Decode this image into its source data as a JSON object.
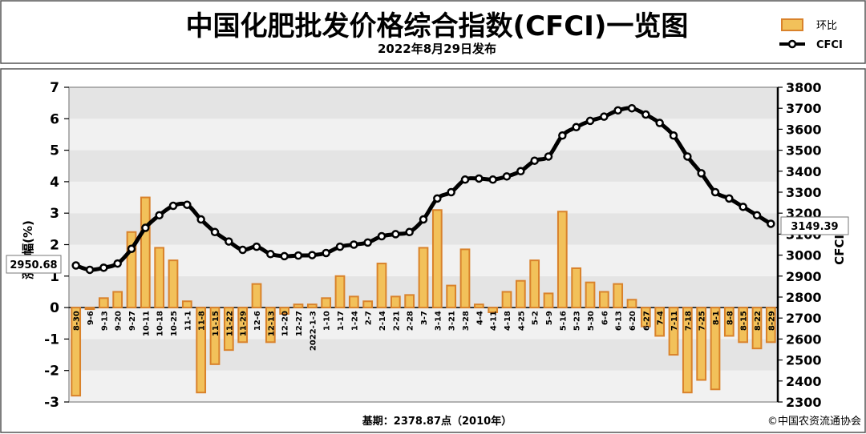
{
  "header": {
    "title": "中国化肥批发价格综合指数(CFCI)一览图",
    "subtitle": "2022年8月29日发布"
  },
  "legend": {
    "bar_label": "环比",
    "line_label": "CFCI"
  },
  "footer": {
    "base": "基期：2378.87点（2010年）",
    "copyright": "©中国农资流通协会"
  },
  "callouts": {
    "start": "2950.68",
    "end": "3149.39"
  },
  "colors": {
    "bar_fill": "#f2c15a",
    "bar_edge": "#d9822b",
    "line": "#000000",
    "grid_band": "#e4e4e4",
    "frame": "#9a9a9a"
  },
  "chart_data": {
    "type": "bar+line",
    "title": "中国化肥批发价格综合指数(CFCI)一览图",
    "categories": [
      "8-30",
      "9-6",
      "9-13",
      "9-20",
      "9-27",
      "10-11",
      "10-18",
      "10-25",
      "11-1",
      "11-8",
      "11-15",
      "11-22",
      "11-29",
      "12-6",
      "12-13",
      "12-20",
      "12-27",
      "2022-1-3",
      "1-10",
      "1-17",
      "1-24",
      "2-7",
      "2-14",
      "2-21",
      "2-28",
      "3-7",
      "3-14",
      "3-21",
      "3-28",
      "4-4",
      "4-11",
      "4-18",
      "4-25",
      "5-2",
      "5-9",
      "5-16",
      "5-23",
      "5-30",
      "6-6",
      "6-13",
      "6-20",
      "6-27",
      "7-4",
      "7-11",
      "7-18",
      "7-25",
      "8-1",
      "8-8",
      "8-15",
      "8-22",
      "8-29"
    ],
    "series": [
      {
        "name": "环比",
        "axis": "left",
        "type": "bar",
        "values": [
          -2.8,
          -0.05,
          0.3,
          0.5,
          2.4,
          3.5,
          1.9,
          1.5,
          0.2,
          -2.7,
          -1.8,
          -1.35,
          -1.1,
          0.75,
          -1.1,
          -0.2,
          0.1,
          0.1,
          0.3,
          1.0,
          0.35,
          0.2,
          1.4,
          0.35,
          0.4,
          1.9,
          3.1,
          0.7,
          1.85,
          0.1,
          -0.15,
          0.5,
          0.85,
          1.5,
          0.45,
          3.05,
          1.25,
          0.8,
          0.5,
          0.75,
          0.25,
          -0.6,
          -0.9,
          -1.5,
          -2.7,
          -2.3,
          -2.6,
          -0.9,
          -1.1,
          -1.3,
          -1.1
        ]
      },
      {
        "name": "CFCI",
        "axis": "right",
        "type": "line",
        "values": [
          2950.68,
          2930,
          2940,
          2960,
          3030,
          3130,
          3190,
          3235,
          3240,
          3170,
          3110,
          3065,
          3025,
          3040,
          3005,
          2995,
          2998,
          3000,
          3010,
          3040,
          3050,
          3060,
          3090,
          3100,
          3110,
          3170,
          3270,
          3300,
          3360,
          3365,
          3360,
          3375,
          3400,
          3450,
          3470,
          3570,
          3610,
          3640,
          3660,
          3690,
          3700,
          3670,
          3630,
          3570,
          3470,
          3390,
          3300,
          3270,
          3230,
          3190,
          3149.39
        ]
      }
    ],
    "y_left": {
      "label": "涨跌幅(%)",
      "range": [
        -3,
        7
      ],
      "ticks": [
        -3,
        -2,
        -1,
        0,
        1,
        2,
        3,
        4,
        5,
        6,
        7
      ]
    },
    "y_right": {
      "label": "CFCI",
      "range": [
        2300,
        3800
      ],
      "ticks": [
        2300,
        2400,
        2500,
        2600,
        2700,
        2800,
        2900,
        3000,
        3100,
        3200,
        3300,
        3400,
        3500,
        3600,
        3700,
        3800
      ]
    },
    "grid": "alternating horizontal bands",
    "legend": "top-right"
  }
}
